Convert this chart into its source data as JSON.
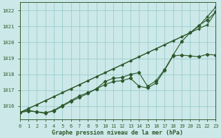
{
  "title": "Graphe pression niveau de la mer (hPa)",
  "bg_color": "#cce8e8",
  "grid_color": "#99cccc",
  "line_color": "#2d5a2d",
  "x_ticks": [
    0,
    1,
    2,
    3,
    4,
    5,
    6,
    7,
    8,
    9,
    10,
    11,
    12,
    13,
    14,
    15,
    16,
    17,
    18,
    19,
    20,
    21,
    22,
    23
  ],
  "y_ticks": [
    1016,
    1017,
    1018,
    1019,
    1020,
    1021,
    1022
  ],
  "ylim": [
    1015.2,
    1022.5
  ],
  "xlim": [
    0,
    23
  ],
  "series": [
    [
      1015.6,
      1015.85,
      1016.1,
      1016.35,
      1016.6,
      1016.85,
      1017.1,
      1017.35,
      1017.6,
      1017.85,
      1018.1,
      1018.35,
      1018.6,
      1018.85,
      1019.1,
      1019.35,
      1019.6,
      1019.85,
      1020.1,
      1020.35,
      1020.6,
      1020.85,
      1021.1,
      1021.9
    ],
    [
      1015.6,
      1015.85,
      1016.1,
      1016.35,
      1016.6,
      1016.85,
      1017.1,
      1017.35,
      1017.6,
      1017.85,
      1018.1,
      1018.35,
      1018.6,
      1018.85,
      1019.1,
      1019.35,
      1019.6,
      1019.85,
      1020.1,
      1020.35,
      1020.6,
      1021.0,
      1021.6,
      1022.2
    ],
    [
      1015.6,
      1015.7,
      1015.65,
      1015.6,
      1015.7,
      1016.0,
      1016.3,
      1016.55,
      1016.8,
      1017.1,
      1017.55,
      1017.75,
      1017.8,
      1018.0,
      1018.1,
      1017.25,
      1017.6,
      1018.3,
      1019.2,
      1020.05,
      1020.6,
      1021.05,
      1021.4,
      1021.9
    ],
    [
      1015.6,
      1015.75,
      1015.65,
      1015.55,
      1015.75,
      1016.05,
      1016.35,
      1016.65,
      1016.85,
      1017.1,
      1017.35,
      1017.55,
      1017.6,
      1017.75,
      1017.25,
      1017.15,
      1017.45,
      1018.25,
      1019.15,
      1019.2,
      1019.15,
      1019.1,
      1019.25,
      1019.2
    ]
  ]
}
